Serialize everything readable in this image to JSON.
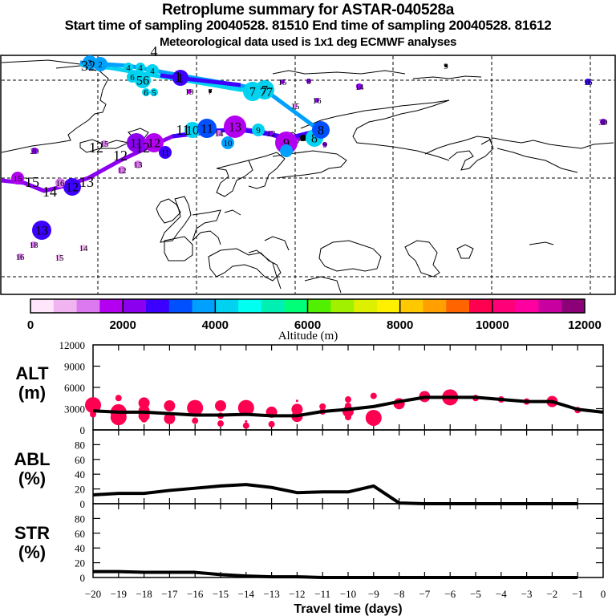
{
  "header": {
    "title": "Retroplume summary for ASTAR-040528a",
    "subtitle": "Start time of sampling 20040528. 81510     End time of sampling 20040528. 81612",
    "met_info": "Meteorological data used is 1x1 deg ECMWF analyses"
  },
  "colorbar": {
    "label": "Altitude (m)",
    "ticks": [
      "0",
      "2000",
      "4000",
      "6000",
      "8000",
      "10000",
      "12000"
    ],
    "range": [
      0,
      12000
    ],
    "colors": [
      "#ffe6fa",
      "#f0b4f0",
      "#dc78f0",
      "#b400f0",
      "#8c00f0",
      "#3c00ff",
      "#0050ff",
      "#00a0ff",
      "#00d2f0",
      "#00fff0",
      "#00f0b4",
      "#00ff78",
      "#50f000",
      "#a0f000",
      "#dcf000",
      "#fff000",
      "#ffc800",
      "#ffa000",
      "#ff6400",
      "#ff0050",
      "#ff0078",
      "#ff00a0",
      "#c800a0",
      "#8c0078"
    ]
  },
  "map": {
    "description": "Retroplume cluster trajectories over North Atlantic / Europe / Arctic",
    "plume_paths": [
      {
        "name": "path-cyan",
        "color": "#00d2f0",
        "labels": [
          "1",
          "2",
          "3",
          "4",
          "5",
          "6",
          "7"
        ]
      },
      {
        "name": "path-lightblue",
        "color": "#00a0ff",
        "labels": [
          "7",
          "8"
        ]
      },
      {
        "name": "path-blue",
        "color": "#3c00ff",
        "labels": [
          "1",
          "7"
        ]
      },
      {
        "name": "path-violet",
        "color": "#8c00f0",
        "labels": [
          "8",
          "9",
          "10",
          "11",
          "12",
          "13",
          "14",
          "15"
        ]
      }
    ],
    "point_labels": [
      "1",
      "2",
      "3",
      "4",
      "5",
      "6",
      "7",
      "8",
      "9",
      "10",
      "11",
      "12",
      "13",
      "14",
      "15",
      "16",
      "18",
      "20",
      "30"
    ]
  },
  "chart_data": [
    {
      "type": "line",
      "panel": "ALT",
      "ylabel": "ALT\n(m)",
      "ylim": [
        0,
        12000
      ],
      "yticks": [
        "0",
        "3000",
        "6000",
        "9000",
        "12000"
      ],
      "x": [
        -20,
        -19,
        -18,
        -17,
        -16,
        -15,
        -14,
        -13,
        -12,
        -11,
        -10,
        -9,
        -8,
        -7,
        -6,
        -5,
        -4,
        -3,
        -2,
        -1,
        0
      ],
      "values": [
        2700,
        2500,
        2500,
        2300,
        2100,
        2100,
        2200,
        2000,
        2000,
        2600,
        2900,
        3300,
        4000,
        4600,
        4600,
        4600,
        4300,
        4000,
        4000,
        2900,
        2500
      ],
      "clusters": [
        {
          "x": -20,
          "alt": 3500,
          "size": "large"
        },
        {
          "x": -20,
          "alt": 2200,
          "size": "small"
        },
        {
          "x": -19,
          "alt": 4500,
          "size": "small"
        },
        {
          "x": -19,
          "alt": 2500,
          "size": "large"
        },
        {
          "x": -19,
          "alt": 1800,
          "size": "large"
        },
        {
          "x": -18,
          "alt": 3800,
          "size": "medium"
        },
        {
          "x": -18,
          "alt": 2700,
          "size": "medium"
        },
        {
          "x": -18,
          "alt": 2000,
          "size": "medium"
        },
        {
          "x": -18,
          "alt": 1500,
          "size": "small"
        },
        {
          "x": -17,
          "alt": 3400,
          "size": "medium"
        },
        {
          "x": -17,
          "alt": 1600,
          "size": "medium"
        },
        {
          "x": -16,
          "alt": 3100,
          "size": "large"
        },
        {
          "x": -16,
          "alt": 1300,
          "size": "small"
        },
        {
          "x": -15,
          "alt": 3400,
          "size": "medium"
        },
        {
          "x": -15,
          "alt": 2000,
          "size": "small"
        },
        {
          "x": -15,
          "alt": 900,
          "size": "small"
        },
        {
          "x": -14,
          "alt": 3100,
          "size": "large"
        },
        {
          "x": -14,
          "alt": 1200,
          "size": "tiny"
        },
        {
          "x": -14,
          "alt": 600,
          "size": "small"
        },
        {
          "x": -13,
          "alt": 2500,
          "size": "medium"
        },
        {
          "x": -13,
          "alt": 800,
          "size": "small"
        },
        {
          "x": -12,
          "alt": 4100,
          "size": "tiny"
        },
        {
          "x": -12,
          "alt": 2900,
          "size": "medium"
        },
        {
          "x": -12,
          "alt": 1900,
          "size": "medium"
        },
        {
          "x": -11,
          "alt": 3300,
          "size": "small"
        },
        {
          "x": -11,
          "alt": 2600,
          "size": "small"
        },
        {
          "x": -10,
          "alt": 4300,
          "size": "small"
        },
        {
          "x": -10,
          "alt": 3400,
          "size": "small"
        },
        {
          "x": -10,
          "alt": 2600,
          "size": "medium"
        },
        {
          "x": -10,
          "alt": 1800,
          "size": "small"
        },
        {
          "x": -9,
          "alt": 4800,
          "size": "small"
        },
        {
          "x": -9,
          "alt": 1700,
          "size": "large"
        },
        {
          "x": -8,
          "alt": 3700,
          "size": "medium"
        },
        {
          "x": -7,
          "alt": 4700,
          "size": "medium"
        },
        {
          "x": -6,
          "alt": 4600,
          "size": "large"
        },
        {
          "x": -5,
          "alt": 4500,
          "size": "small"
        },
        {
          "x": -4,
          "alt": 4300,
          "size": "small"
        },
        {
          "x": -3,
          "alt": 4000,
          "size": "small"
        },
        {
          "x": -2,
          "alt": 4000,
          "size": "medium"
        },
        {
          "x": -1,
          "alt": 2800,
          "size": "small"
        }
      ],
      "line_color": "#000000",
      "marker_color": "#ff0050"
    },
    {
      "type": "line",
      "panel": "ABL",
      "ylabel": "ABL\n(%)",
      "ylim": [
        0,
        100
      ],
      "yticks": [
        "0",
        "20",
        "40",
        "60",
        "80"
      ],
      "x": [
        -20,
        -19,
        -18,
        -17,
        -16,
        -15,
        -14,
        -13,
        -12,
        -11,
        -10,
        -9,
        -8,
        -7,
        -6,
        -5,
        -4,
        -3,
        -2,
        -1
      ],
      "values": [
        12,
        14,
        14,
        18,
        21,
        24,
        26,
        22,
        15,
        16,
        16,
        24,
        1,
        0,
        0,
        0,
        0,
        0,
        0,
        0
      ]
    },
    {
      "type": "line",
      "panel": "STR",
      "ylabel": "STR\n(%)",
      "ylim": [
        0,
        100
      ],
      "yticks": [
        "0",
        "20",
        "40",
        "60",
        "80"
      ],
      "x": [
        -20,
        -19,
        -18,
        -17,
        -16,
        -15,
        -14,
        -13,
        -12,
        -11,
        -10,
        -9,
        -8,
        -7,
        -6,
        -5,
        -4,
        -3,
        -2,
        -1
      ],
      "values": [
        8,
        8,
        7,
        7,
        7,
        4,
        2,
        1,
        1,
        0,
        0,
        0,
        0,
        0,
        0,
        0,
        0,
        0,
        0,
        0
      ],
      "xlabel": "Travel time (days)",
      "xticks": [
        "-20",
        "-19",
        "-18",
        "-17",
        "-16",
        "-15",
        "-14",
        "-13",
        "-12",
        "-11",
        "-10",
        "-9",
        "-8",
        "-7",
        "-6",
        "-5",
        "-4",
        "-3",
        "-2",
        "-1",
        "0"
      ],
      "xlim": [
        -20,
        0
      ]
    }
  ]
}
